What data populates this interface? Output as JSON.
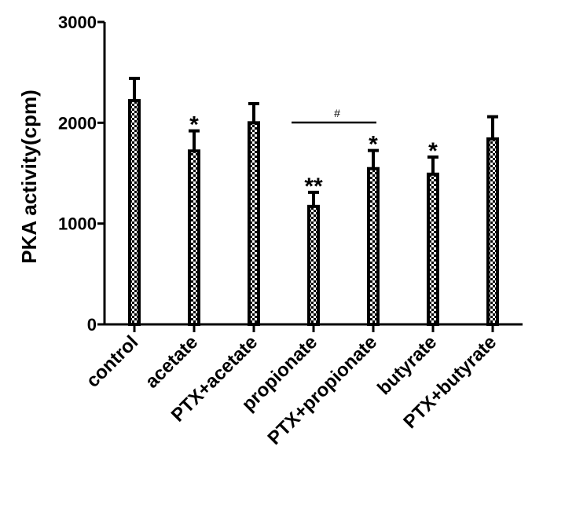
{
  "chart_data": {
    "type": "bar",
    "title": "",
    "xlabel": "",
    "ylabel": "PKA activity(cpm)",
    "ylim": [
      0,
      3000
    ],
    "yticks": [
      "0",
      "1000",
      "2000",
      "3000"
    ],
    "categories": [
      "control",
      "acetate",
      "PTX+acetate",
      "propionate",
      "PTX+propionate",
      "butyrate",
      "PTX+butyrate"
    ],
    "values": [
      2220,
      1720,
      2000,
      1170,
      1545,
      1490,
      1840
    ],
    "errors": [
      220,
      200,
      190,
      140,
      180,
      170,
      220
    ],
    "significance": [
      "",
      "*",
      "",
      "**",
      "*",
      "*",
      ""
    ],
    "bracket": {
      "from": "propionate",
      "to": "PTX+propionate",
      "label": "#"
    },
    "bar_pattern": "checkered",
    "grid": false,
    "legend": "none"
  }
}
